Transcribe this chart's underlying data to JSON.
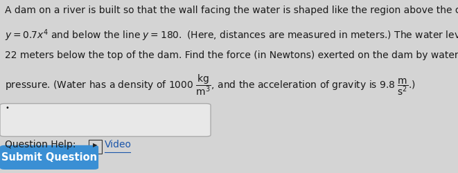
{
  "bg_color": "#d4d4d4",
  "text_color": "#1a1a1a",
  "line1": "A dam on a river is built so that the wall facing the water is shaped like the region above the curve",
  "line2": "$y = 0.7x^4$ and below the line $y = 180.$ (Here, distances are measured in meters.) The water level is",
  "line3": "22 meters below the top of the dam. Find the force (in Newtons) exerted on the dam by water",
  "line4": "pressure. (Water has a density of 1000 $\\dfrac{\\mathrm{kg}}{\\mathrm{m}^3}$, and the acceleration of gravity is 9.8 $\\dfrac{\\mathrm{m}}{\\mathrm{s}^2}$.)",
  "qhelp_text": "Question Help:  ",
  "video_text": "Video",
  "submit_text": "Submit Question",
  "submit_bg": "#3a8fd4",
  "submit_text_color": "#ffffff",
  "input_box_facecolor": "#e8e8e8",
  "input_box_edgecolor": "#aaaaaa",
  "font_size_main": 10.0,
  "font_size_btn": 10.5,
  "link_color": "#1a55aa"
}
